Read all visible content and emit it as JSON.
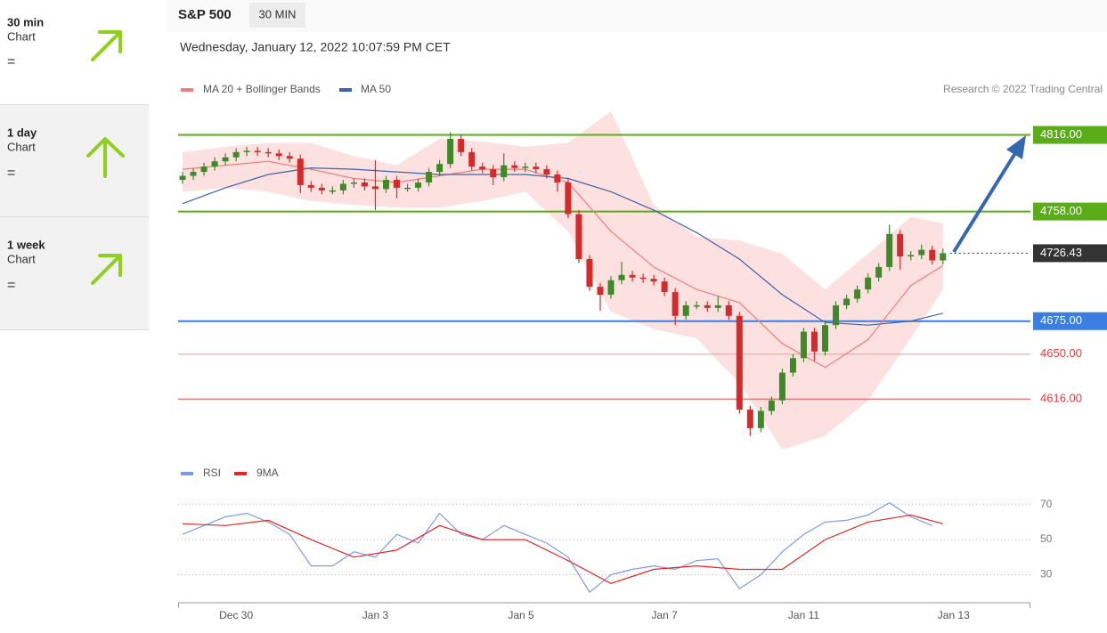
{
  "sidebar": [
    {
      "period": "30 min",
      "label": "Chart",
      "signal": "="
    },
    {
      "period": "1 day",
      "label": "Chart",
      "signal": "="
    },
    {
      "period": "1 week",
      "label": "Chart",
      "signal": "="
    }
  ],
  "header": {
    "symbol": "S&P 500",
    "interval": "30 MIN",
    "timestamp": "Wednesday, January 12, 2022 10:07:59 PM CET",
    "credit": "Research © 2022 Trading Central"
  },
  "chart_data": [
    {
      "type": "candlestick",
      "up_color": "#3d8a26",
      "down_color": "#d42a2a",
      "xlim": [
        -0.5,
        79
      ],
      "ylim": [
        4571,
        4844
      ],
      "open": [
        4782,
        4785,
        4788,
        4792,
        4796,
        4799,
        4803,
        4804,
        4803,
        4802,
        4800,
        4798,
        4778,
        4776,
        4774,
        4774,
        4779,
        4780,
        4777,
        4775,
        4782,
        4776,
        4776,
        4780,
        4788,
        4794,
        4813,
        4803,
        4792,
        4790,
        4784,
        4793,
        4791,
        4792,
        4790,
        4786,
        4780,
        4756,
        4722,
        4701,
        4695,
        4706,
        4710,
        4708,
        4707,
        4705,
        4697,
        4679,
        4687,
        4687,
        4685,
        4687,
        4679,
        4608,
        4594,
        4607,
        4615,
        4636,
        4647,
        4667,
        4652,
        4672,
        4687,
        4692,
        4699,
        4708,
        4716,
        4741,
        4724,
        4725,
        4729,
        4721
      ],
      "high": [
        4788,
        4791,
        4795,
        4799,
        4802,
        4806,
        4807,
        4807,
        4806,
        4805,
        4803,
        4801,
        4781,
        4779,
        4777,
        4782,
        4783,
        4783,
        4797,
        4785,
        4785,
        4779,
        4783,
        4791,
        4797,
        4818,
        4816,
        4806,
        4795,
        4793,
        4802,
        4796,
        4795,
        4795,
        4793,
        4789,
        4783,
        4759,
        4725,
        4704,
        4709,
        4720,
        4713,
        4711,
        4710,
        4708,
        4700,
        4690,
        4690,
        4690,
        4694,
        4690,
        4682,
        4611,
        4610,
        4618,
        4639,
        4650,
        4670,
        4670,
        4675,
        4690,
        4695,
        4702,
        4711,
        4719,
        4748,
        4744,
        4728,
        4733,
        4732,
        4730
      ],
      "low": [
        4779,
        4782,
        4785,
        4789,
        4793,
        4796,
        4800,
        4800,
        4799,
        4797,
        4795,
        4772,
        4773,
        4771,
        4771,
        4771,
        4776,
        4774,
        4759,
        4772,
        4768,
        4773,
        4773,
        4777,
        4785,
        4791,
        4800,
        4789,
        4787,
        4778,
        4781,
        4788,
        4788,
        4787,
        4783,
        4773,
        4753,
        4719,
        4698,
        4683,
        4692,
        4703,
        4705,
        4704,
        4702,
        4694,
        4672,
        4676,
        4684,
        4682,
        4682,
        4676,
        4605,
        4588,
        4591,
        4604,
        4612,
        4633,
        4644,
        4645,
        4649,
        4669,
        4684,
        4689,
        4696,
        4705,
        4713,
        4714,
        4721,
        4722,
        4718,
        4718
      ],
      "close": [
        4785,
        4788,
        4792,
        4796,
        4799,
        4803,
        4804,
        4803,
        4802,
        4800,
        4798,
        4778,
        4776,
        4774,
        4774,
        4779,
        4780,
        4777,
        4775,
        4782,
        4776,
        4776,
        4780,
        4788,
        4794,
        4813,
        4803,
        4792,
        4790,
        4784,
        4793,
        4791,
        4792,
        4790,
        4786,
        4780,
        4756,
        4722,
        4701,
        4695,
        4706,
        4710,
        4708,
        4707,
        4705,
        4697,
        4679,
        4687,
        4687,
        4685,
        4687,
        4679,
        4608,
        4594,
        4607,
        4615,
        4636,
        4647,
        4667,
        4652,
        4672,
        4687,
        4692,
        4699,
        4708,
        4716,
        4741,
        4724,
        4725,
        4729,
        4721,
        4726.43
      ],
      "series": [
        {
          "name": "MA 20 + Bollinger Bands",
          "color": "#f07c7c",
          "band_color": "#fde0e0",
          "x": [
            0,
            4,
            8,
            12,
            16,
            20,
            24,
            28,
            32,
            36,
            40,
            44,
            48,
            52,
            56,
            60,
            64,
            68,
            71
          ],
          "values": [
            4790,
            4793,
            4796,
            4790,
            4783,
            4780,
            4785,
            4790,
            4790,
            4780,
            4743,
            4716,
            4699,
            4689,
            4658,
            4640,
            4661,
            4702,
            4717
          ],
          "upper": [
            4803,
            4807,
            4810,
            4810,
            4800,
            4793,
            4813,
            4811,
            4807,
            4810,
            4834,
            4763,
            4739,
            4736,
            4726,
            4699,
            4726,
            4754,
            4749
          ],
          "lower": [
            4773,
            4776,
            4773,
            4766,
            4763,
            4761,
            4761,
            4766,
            4773,
            4743,
            4682,
            4669,
            4662,
            4628,
            4578,
            4588,
            4615,
            4662,
            4699
          ]
        },
        {
          "name": "MA 50",
          "color": "#3c64a8",
          "x": [
            0,
            4,
            8,
            12,
            16,
            20,
            24,
            28,
            32,
            36,
            40,
            44,
            48,
            52,
            56,
            60,
            64,
            68,
            71
          ],
          "values": [
            4764,
            4776,
            4786,
            4791,
            4790,
            4788,
            4786,
            4786,
            4786,
            4783,
            4773,
            4759,
            4742,
            4722,
            4695,
            4674,
            4672,
            4675,
            4681
          ]
        }
      ],
      "levels": [
        {
          "value": 4816,
          "label": "4816.00",
          "color": "#5aad18",
          "boxed": true,
          "line": "solid"
        },
        {
          "value": 4758,
          "label": "4758.00",
          "color": "#5aad18",
          "boxed": true,
          "line": "solid"
        },
        {
          "value": 4726.43,
          "label": "4726.43",
          "color": "#333333",
          "boxed": true,
          "line": "dotted"
        },
        {
          "value": 4675,
          "label": "4675.00",
          "color": "#3b7de0",
          "boxed": true,
          "line": "solid"
        },
        {
          "value": 4650,
          "label": "4650.00",
          "color": "#f5a3a3",
          "text_color": "#ee3b3b",
          "boxed": false,
          "line": "solid"
        },
        {
          "value": 4616,
          "label": "4616.00",
          "color": "#e86a6a",
          "text_color": "#ee3b3b",
          "boxed": false,
          "line": "solid"
        }
      ]
    },
    {
      "type": "line",
      "xlim": [
        -0.5,
        79
      ],
      "ylim": [
        15,
        81
      ],
      "yticks": [
        30,
        50,
        70
      ],
      "grid": true,
      "xticks": [
        {
          "value": 5,
          "label": "Dec 30"
        },
        {
          "value": 18,
          "label": "Jan 3"
        },
        {
          "value": 31.6,
          "label": "Jan 5"
        },
        {
          "value": 45,
          "label": "Jan 7"
        },
        {
          "value": 58,
          "label": "Jan 11"
        },
        {
          "value": 72,
          "label": "Jan 13"
        }
      ],
      "series": [
        {
          "name": "RSI",
          "color": "#7b9be8",
          "x": [
            0,
            2,
            4,
            6,
            8,
            10,
            12,
            14,
            16,
            18,
            20,
            22,
            24,
            26,
            28,
            30,
            32,
            34,
            36,
            38,
            40,
            42,
            44,
            46,
            48,
            50,
            52,
            54,
            56,
            58,
            60,
            62,
            64,
            66,
            68,
            70
          ],
          "values": [
            53,
            58,
            63,
            65,
            60,
            53,
            35,
            35,
            43,
            40,
            53,
            48,
            65,
            53,
            50,
            58,
            53,
            48,
            40,
            20,
            30,
            33,
            35,
            33,
            38,
            39,
            22,
            30,
            43,
            53,
            60,
            61,
            64,
            71,
            63,
            58
          ]
        },
        {
          "name": "9MA",
          "color": "#e82525",
          "x": [
            0,
            4,
            8,
            12,
            16,
            20,
            24,
            28,
            32,
            36,
            40,
            44,
            48,
            52,
            56,
            60,
            64,
            68,
            71
          ],
          "values": [
            59,
            58,
            61,
            50,
            40,
            44,
            58,
            50,
            50,
            38,
            25,
            33,
            35,
            33,
            33,
            50,
            60,
            64,
            59
          ]
        }
      ]
    }
  ]
}
